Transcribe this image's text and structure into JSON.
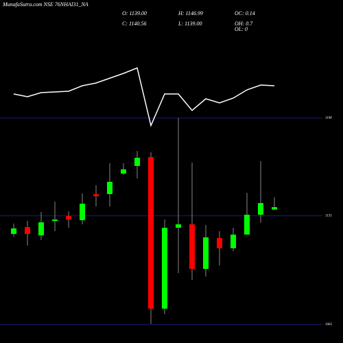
{
  "chart_data": {
    "type": "candlestick",
    "title": "MunafaSutra.com NSE 76NHAI31_NA",
    "stats": [
      "O: 1139.00",
      "H: 1146.99",
      "OC: 0.14",
      "C: 1140.56",
      "L: 1139.00",
      "OH: 0.7",
      "OL: 0"
    ],
    "open": [
      1123.3,
      1127.7,
      1122.4,
      1131.7,
      1134.8,
      1132.2,
      1149.0,
      1149.0,
      1162.2,
      1167.1,
      1172.8,
      1075.2,
      1127.3,
      1129.5,
      1100.8,
      1120.7,
      1114.1,
      1122.9,
      1135.7,
      1139.0
    ],
    "high": [
      1130.0,
      1131.7,
      1137.5,
      1144.1,
      1137.9,
      1149.4,
      1154.7,
      1168.8,
      1168.8,
      1176.8,
      1175.9,
      1132.6,
      1198.0,
      1169.3,
      1129.1,
      1125.1,
      1127.3,
      1149.8,
      1170.2,
      1146.99
    ],
    "low": [
      1121.6,
      1115.8,
      1119.4,
      1125.1,
      1127.3,
      1129.5,
      1141.0,
      1141.0,
      1161.3,
      1159.1,
      1065.4,
      1071.6,
      1098.1,
      1093.7,
      1095.9,
      1103.0,
      1112.3,
      1122.9,
      1130.4,
      1139.0
    ],
    "close": [
      1126.9,
      1123.3,
      1130.8,
      1132.6,
      1132.6,
      1142.8,
      1147.6,
      1156.9,
      1164.9,
      1172.4,
      1075.2,
      1127.3,
      1129.5,
      1100.8,
      1121.1,
      1114.1,
      1122.9,
      1135.7,
      1143.2,
      1140.56
    ],
    "up_color": "#00ff00",
    "down_color": "#ff0000",
    "ylim": [
      1065,
      1198
    ],
    "yticks": [
      1065,
      1135,
      1198
    ],
    "grid": true,
    "indicator": {
      "color": "#ffffff",
      "ylim": [
        0,
        100
      ],
      "values": [
        53,
        49,
        55,
        56,
        57,
        65,
        69,
        76,
        83,
        91,
        7,
        53,
        53,
        29,
        46,
        40,
        47,
        59,
        66,
        65
      ]
    }
  }
}
